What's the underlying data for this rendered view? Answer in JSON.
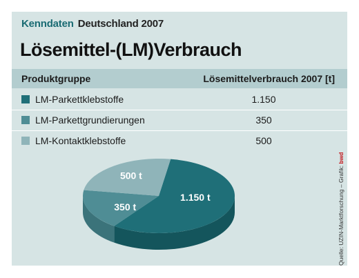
{
  "header": {
    "kicker_accent": "Kenndaten",
    "kicker_text": "Deutschland 2007",
    "title": "Lösemittel-(LM)Verbrauch"
  },
  "table": {
    "col_group": "Produktgruppe",
    "col_value": "Lösemittelverbrauch 2007 [t]",
    "rows": [
      {
        "label": "LM-Parkettklebstoffe",
        "value": "1.150"
      },
      {
        "label": "LM-Parkettgrundierungen",
        "value": "350"
      },
      {
        "label": "LM-Kontaktklebstoffe",
        "value": "500"
      }
    ]
  },
  "source": {
    "text": "Quelle: UZIN-Marktforschung – Grafik: ",
    "brand": "bwd"
  },
  "colors": {
    "panel": "#d6e4e4",
    "header_bar": "#b3cdcf",
    "accent": "#1a6b73",
    "slice_top": [
      "#1f6f78",
      "#4f8d95",
      "#8fb4b9"
    ],
    "slice_side": [
      "#14555c",
      "#3b737a",
      "#6f9297"
    ]
  },
  "chart_data": {
    "type": "pie",
    "title": "Lösemittel-(LM)Verbrauch",
    "unit": "t",
    "categories": [
      "LM-Parkettklebstoffe",
      "LM-Parkettgrundierungen",
      "LM-Kontaktklebstoffe"
    ],
    "values": [
      1150,
      350,
      500
    ],
    "data_labels": [
      "1.150 t",
      "350 t",
      "500 t"
    ],
    "legend": "table-above"
  }
}
